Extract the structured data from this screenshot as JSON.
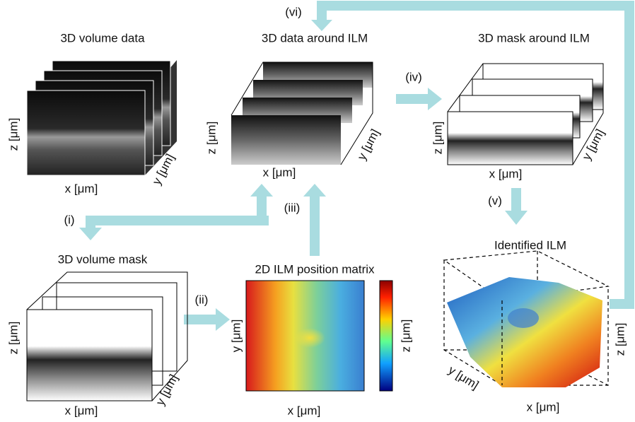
{
  "panels": [
    {
      "title": "3D volume data",
      "x_label": "x [μm]",
      "y_label": "y [μm]",
      "z_label": "z [μm]"
    },
    {
      "title": "3D data around ILM",
      "x_label": "x [μm]",
      "y_label": "y [μm]",
      "z_label": "z [μm]"
    },
    {
      "title": "3D mask around ILM",
      "x_label": "x [μm]",
      "y_label": "y [μm]",
      "z_label": "z [μm]"
    },
    {
      "title": "3D volume mask",
      "x_label": "x [μm]",
      "y_label": "y [μm]",
      "z_label": "z [μm]"
    },
    {
      "title": "2D ILM position matrix",
      "x_label": "x [μm]",
      "y_label": "y [μm]",
      "colorbar_label": "z [μm]"
    },
    {
      "title": "Identified ILM",
      "x_label": "x [μm]",
      "y_label": "y [μm]",
      "z_label": "z [μm]"
    }
  ],
  "steps": [
    "(i)",
    "(ii)",
    "(iii)",
    "(iv)",
    "(v)",
    "(vi)"
  ]
}
